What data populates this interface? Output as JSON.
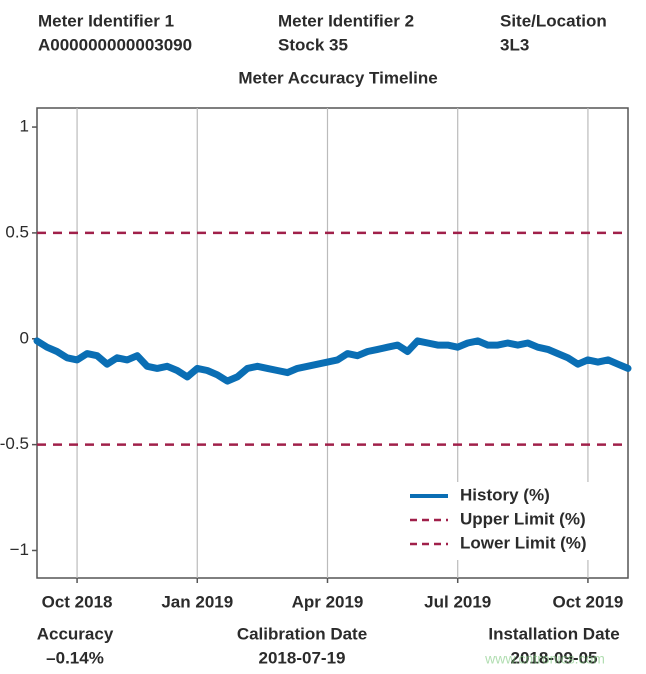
{
  "header": [
    {
      "label": "Meter Identifier 1",
      "value": "A000000000003090"
    },
    {
      "label": "Meter Identifier 2",
      "value": "Stock 35"
    },
    {
      "label": "Site/Location",
      "value": "3L3"
    }
  ],
  "footer": [
    {
      "label": "Accuracy",
      "value": "–0.14%"
    },
    {
      "label": "Calibration Date",
      "value": "2018-07-19"
    },
    {
      "label": "Installation Date",
      "value": "2018-09-05"
    }
  ],
  "watermark": "www.cntronics.com",
  "chart_data": {
    "type": "line",
    "title": "Meter Accuracy Timeline",
    "categories": [
      null,
      null,
      null,
      null,
      "Oct 2018",
      null,
      null,
      null,
      null,
      null,
      null,
      null,
      null,
      null,
      null,
      null,
      "Jan 2019",
      null,
      null,
      null,
      null,
      null,
      null,
      null,
      null,
      null,
      null,
      null,
      null,
      "Apr 2019",
      null,
      null,
      null,
      null,
      null,
      null,
      null,
      null,
      null,
      null,
      null,
      null,
      "Jul 2019",
      null,
      null,
      null,
      null,
      null,
      null,
      null,
      null,
      null,
      null,
      null,
      null,
      "Oct 2019",
      null,
      null,
      null,
      null
    ],
    "series": [
      {
        "name": "History (%)",
        "color": "#0a6eb4",
        "values": [
          -0.01,
          -0.04,
          -0.06,
          -0.09,
          -0.1,
          -0.07,
          -0.08,
          -0.12,
          -0.09,
          -0.1,
          -0.08,
          -0.13,
          -0.14,
          -0.13,
          -0.15,
          -0.18,
          -0.14,
          -0.15,
          -0.17,
          -0.2,
          -0.18,
          -0.14,
          -0.13,
          -0.14,
          -0.15,
          -0.16,
          -0.14,
          -0.13,
          -0.12,
          -0.11,
          -0.1,
          -0.07,
          -0.08,
          -0.06,
          -0.05,
          -0.04,
          -0.03,
          -0.06,
          -0.01,
          -0.02,
          -0.03,
          -0.03,
          -0.04,
          -0.02,
          -0.01,
          -0.03,
          -0.03,
          -0.02,
          -0.03,
          -0.02,
          -0.04,
          -0.05,
          -0.07,
          -0.09,
          -0.12,
          -0.1,
          -0.11,
          -0.1,
          -0.12,
          -0.14
        ]
      }
    ],
    "reference_lines": [
      {
        "name": "Upper Limit (%)",
        "value": 0.5,
        "color": "#a0204a"
      },
      {
        "name": "Lower Limit (%)",
        "value": -0.5,
        "color": "#a0204a"
      }
    ],
    "ylim": [
      -1.13,
      1.09
    ],
    "yticks": [
      1,
      0.5,
      0,
      -0.5,
      {
        "value": -1,
        "label": "−1"
      }
    ],
    "grid": "x",
    "legend": "lower right"
  }
}
